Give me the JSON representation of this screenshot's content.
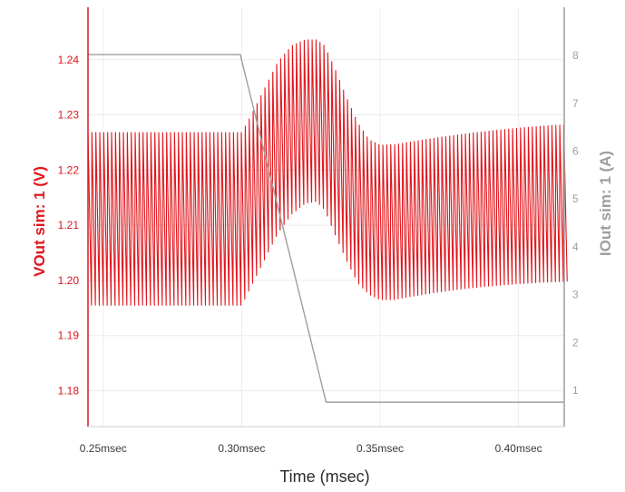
{
  "chart_data": {
    "type": "line",
    "xlabel": "Time (msec)",
    "ylabel_left": "VOut sim: 1 (V)",
    "ylabel_right": "IOut sim: 1 (A)",
    "xlim": [
      0.2445,
      0.4165
    ],
    "ylim_left": [
      1.1735,
      1.2495
    ],
    "ylim_right": [
      0.24,
      9.01
    ],
    "x_ticks": [
      {
        "value": 0.25,
        "label": "0.25msec"
      },
      {
        "value": 0.3,
        "label": "0.30msec"
      },
      {
        "value": 0.35,
        "label": "0.35msec"
      },
      {
        "value": 0.4,
        "label": "0.40msec"
      }
    ],
    "y_left_ticks": [
      {
        "value": 1.18,
        "label": "1.18"
      },
      {
        "value": 1.19,
        "label": "1.19"
      },
      {
        "value": 1.2,
        "label": "1.20"
      },
      {
        "value": 1.21,
        "label": "1.21"
      },
      {
        "value": 1.22,
        "label": "1.22"
      },
      {
        "value": 1.23,
        "label": "1.23"
      },
      {
        "value": 1.24,
        "label": "1.24"
      }
    ],
    "y_right_ticks": [
      {
        "value": 1,
        "label": "1"
      },
      {
        "value": 2,
        "label": "2"
      },
      {
        "value": 3,
        "label": "3"
      },
      {
        "value": 4,
        "label": "4"
      },
      {
        "value": 5,
        "label": "5"
      },
      {
        "value": 6,
        "label": "6"
      },
      {
        "value": 7,
        "label": "7"
      },
      {
        "value": 8,
        "label": "8"
      }
    ],
    "grid": true,
    "series": [
      {
        "axis": "left",
        "color": "#e0161c",
        "ripple": {
          "period_msec": 0.00142,
          "shape": "asymmetric sawtooth: long ramp down to the lower envelope, short sharp rise to the upper envelope"
        },
        "envelope_x": [
          0.2445,
          0.3,
          0.303,
          0.308,
          0.313,
          0.318,
          0.323,
          0.327,
          0.33,
          0.334,
          0.338,
          0.342,
          0.346,
          0.35,
          0.355,
          0.36,
          0.37,
          0.38,
          0.39,
          0.4,
          0.41,
          0.4165
        ],
        "upper_envelope": [
          1.2268,
          1.2268,
          1.2295,
          1.2345,
          1.2395,
          1.2425,
          1.2436,
          1.2436,
          1.2425,
          1.238,
          1.233,
          1.2285,
          1.2255,
          1.2245,
          1.2246,
          1.225,
          1.2258,
          1.2265,
          1.2271,
          1.2276,
          1.228,
          1.2282
        ],
        "lower_envelope": [
          1.1955,
          1.1955,
          1.1985,
          1.2035,
          1.2085,
          1.212,
          1.214,
          1.2143,
          1.2128,
          1.208,
          1.2035,
          1.1995,
          1.1975,
          1.1965,
          1.1965,
          1.197,
          1.1978,
          1.1985,
          1.199,
          1.1994,
          1.1997,
          1.1998
        ]
      },
      {
        "axis": "right",
        "color": "#9e9e9e",
        "x": [
          0.2445,
          0.2995,
          0.3305,
          0.4165
        ],
        "y": [
          8.02,
          8.02,
          0.75,
          0.75
        ]
      }
    ]
  }
}
